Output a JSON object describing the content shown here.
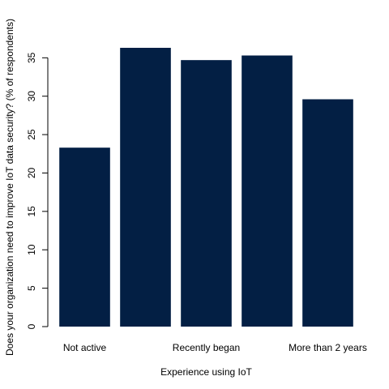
{
  "chart_data": {
    "type": "bar",
    "categories": [
      "Not active",
      "",
      "Recently began",
      "",
      "More than 2 years"
    ],
    "values": [
      23.3,
      36.3,
      34.7,
      35.3,
      29.6
    ],
    "xlabel": "Experience using IoT",
    "ylabel": "Does your organization need to improve IoT data security? (% of respondents)",
    "ylim": [
      0,
      36.3
    ],
    "yticks": [
      0,
      5,
      10,
      15,
      20,
      25,
      30,
      35
    ],
    "bar_color": "#031f44",
    "grid": false,
    "legend": "none"
  }
}
